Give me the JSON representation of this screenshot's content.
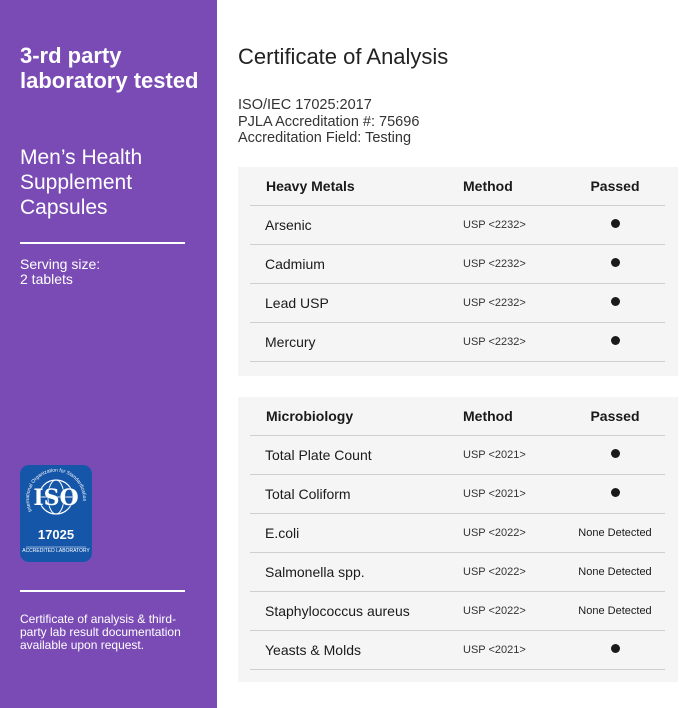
{
  "sidebar": {
    "heading": "3-rd party laboratory tested",
    "product": "Men’s Health Supplement Capsules",
    "serving": "Serving size:\n2 tablets",
    "badge": {
      "text1": "ISO",
      "text2": "17025",
      "text3": "ACCREDITED LABORATORY",
      "ring": "International Organization for Standardization"
    },
    "footnote": "Certificate of analysis & third-party lab result documentation available upon request."
  },
  "main": {
    "title": "Certificate of Analysis",
    "accreditation": [
      "ISO/IEC 17025:2017",
      "PJLA Accreditation #: 75696",
      "Accreditation Field: Testing"
    ],
    "tables": [
      {
        "headers": [
          "Heavy Metals",
          "Method",
          "Passed"
        ],
        "rows": [
          {
            "name": "Arsenic",
            "method": "USP <2232>",
            "result": "passed-dot"
          },
          {
            "name": "Cadmium",
            "method": "USP <2232>",
            "result": "passed-dot"
          },
          {
            "name": "Lead USP",
            "method": "USP <2232>",
            "result": "passed-dot"
          },
          {
            "name": "Mercury",
            "method": "USP <2232>",
            "result": "passed-dot"
          }
        ]
      },
      {
        "headers": [
          "Microbiology",
          "Method",
          "Passed"
        ],
        "rows": [
          {
            "name": "Total Plate Count",
            "method": "USP <2021>",
            "result": "passed-dot"
          },
          {
            "name": "Total Coliform",
            "method": "USP <2021>",
            "result": "passed-dot"
          },
          {
            "name": "E.coli",
            "method": "USP <2022>",
            "result": "None Detected"
          },
          {
            "name": "Salmonella spp.",
            "method": "USP <2022>",
            "result": "None Detected"
          },
          {
            "name": "Staphylococcus aureus",
            "method": "USP <2022>",
            "result": "None Detected"
          },
          {
            "name": "Yeasts & Molds",
            "method": "USP <2021>",
            "result": "passed-dot"
          }
        ]
      }
    ]
  },
  "colors": {
    "sidebar": "#7a4bb5",
    "badge": "#1556a8",
    "table_bg": "#f5f5f5"
  }
}
